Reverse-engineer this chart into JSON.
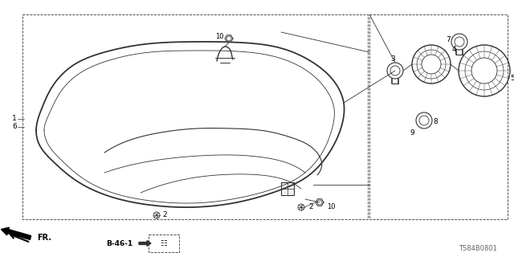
{
  "background_color": "#ffffff",
  "line_color": "#333333",
  "doc_code": "TS84B0801",
  "ref_code": "B-46-1",
  "fig_width": 6.4,
  "fig_height": 3.2,
  "dpi": 100
}
